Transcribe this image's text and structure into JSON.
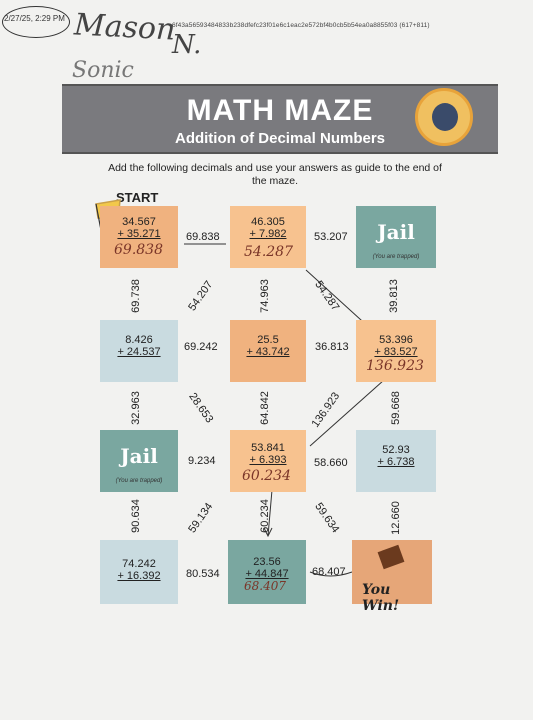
{
  "stamp": "2/27/25, 2:29 PM",
  "hash": "6f43a56593484833b238dfefc23f01e6c1eac2e572bf4b0cb5b54ea0a8855f03 (617+811)",
  "handwriting": {
    "name": "Mason",
    "mark": "N.",
    "note": "Sonic"
  },
  "banner": {
    "title": "MATH MAZE",
    "subtitle": "Addition of Decimal Numbers"
  },
  "instructions": "Add the following decimals and use your answers as guide to the end of the maze.",
  "start": "START",
  "cells": {
    "r1c1": {
      "a": "34.567",
      "b": "+ 35.271",
      "answer": "69.838"
    },
    "r1c2": {
      "a": "46.305",
      "b": "+ 7.982",
      "answer": "54.287"
    },
    "r1c3": {
      "jail": "Jail",
      "sub": "(You are trapped)"
    },
    "r2c1": {
      "a": "8.426",
      "b": "+ 24.537"
    },
    "r2c2": {
      "a": "25.5",
      "b": "+ 43.742"
    },
    "r2c3": {
      "a": "53.396",
      "b": "+ 83.527",
      "answer": "136.923"
    },
    "r3c1": {
      "jail": "Jail",
      "sub": "(You are trapped)"
    },
    "r3c2": {
      "a": "53.841",
      "b": "+ 6.393",
      "answer": "60.234"
    },
    "r3c3": {
      "a": "52.93",
      "b": "+ 6.738"
    },
    "r4c1": {
      "a": "74.242",
      "b": "+ 16.392"
    },
    "r4c2": {
      "a": "23.56",
      "b": "+ 44.847",
      "answer": "68.407"
    },
    "r4c3": {
      "win": "You Win!"
    }
  },
  "connectors": {
    "h_r1_12": "69.838",
    "h_r1_23": "53.207",
    "h_r2_12": "69.242",
    "h_r2_23": "36.813",
    "h_r3_12": "9.234",
    "h_r3_23": "58.660",
    "h_r4_12": "80.534",
    "h_r4_23": "68.407",
    "v_r12_c1": "69.738",
    "v_r12_c2": "74.963",
    "v_r12_c3": "39.813",
    "v_r23_c1": "32.963",
    "v_r23_c2": "64.842",
    "v_r23_c3": "59.668",
    "v_r34_c1": "90.634",
    "v_r34_c2": "60.234",
    "v_r34_c3": "12.660",
    "d_r12_a": "54.207",
    "d_r12_b": "54.287",
    "d_r23_a": "28.653",
    "d_r23_b": "136.923",
    "d_r34_a": "59.134",
    "d_r34_b": "59.634"
  },
  "colors": {
    "banner": "#7a7a7e",
    "orange": "#f0b27f",
    "blue": "#c9dbe0",
    "teal": "#7aa7a0"
  }
}
